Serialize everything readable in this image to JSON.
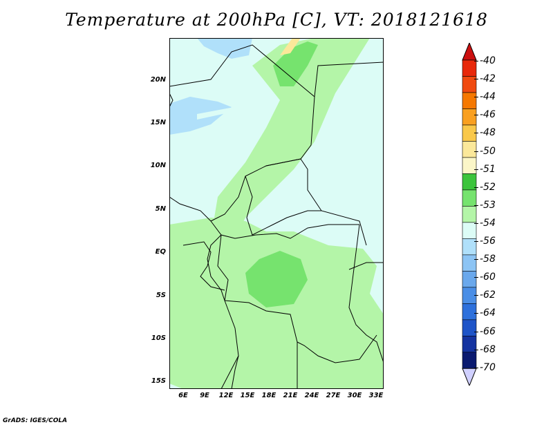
{
  "title": "Temperature at 200hPa [C], VT: 2018121618",
  "credit": "GrADS: IGES/COLA",
  "lat_labels": [
    "20N",
    "15N",
    "10N",
    "5N",
    "EQ",
    "5S",
    "10S",
    "15S"
  ],
  "lon_labels": [
    "6E",
    "9E",
    "12E",
    "15E",
    "18E",
    "21E",
    "24E",
    "27E",
    "30E",
    "33E"
  ],
  "colorbar": {
    "labels": [
      "-40",
      "-42",
      "-44",
      "-46",
      "-48",
      "-50",
      "-51",
      "-52",
      "-53",
      "-54",
      "-56",
      "-58",
      "-60",
      "-62",
      "-64",
      "-66",
      "-68",
      "-70"
    ],
    "colors": {
      "c_top": "#cc1010",
      "c40": "#e8280a",
      "c42": "#f04a10",
      "c44": "#f57800",
      "c46": "#f9a020",
      "c48": "#f9c84a",
      "c50": "#fbe89a",
      "c51": "#fbf6c8",
      "c52": "#3cc43c",
      "c53": "#76e36e",
      "c53b": "#b4f5a8",
      "c54": "#dcfcf6",
      "c56": "#b0e0fa",
      "c58": "#8cc4f4",
      "c60": "#6aa8ec",
      "c62": "#4a8ee6",
      "c64": "#2d70dc",
      "c66": "#1e54c8",
      "c68": "#1433a0",
      "c70": "#0a1a70",
      "c_bot": "#d0d0ff"
    }
  }
}
